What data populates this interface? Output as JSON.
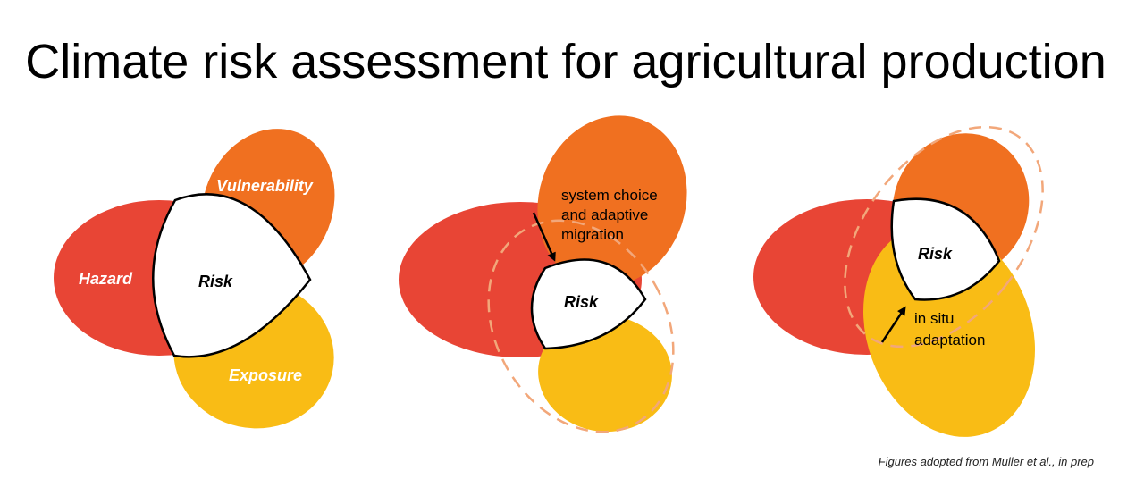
{
  "title": "Climate risk assessment for agricultural production",
  "colors": {
    "hazard": "#e84535",
    "vulnerability": "#f07020",
    "exposure": "#f9bc15",
    "risk": "#ffffff",
    "dashed": "#f2a77a"
  },
  "panels": [
    {
      "labels": {
        "hazard": "Hazard",
        "vulnerability": "Vulnerability",
        "exposure": "Exposure",
        "risk": "Risk"
      }
    },
    {
      "labels": {
        "risk": "Risk"
      },
      "annotation": [
        "system choice",
        "and adaptive",
        "migration"
      ]
    },
    {
      "labels": {
        "risk": "Risk"
      },
      "annotation": [
        "in situ",
        "adaptation"
      ]
    }
  ],
  "credit": "Figures adopted from Muller et al., in prep"
}
